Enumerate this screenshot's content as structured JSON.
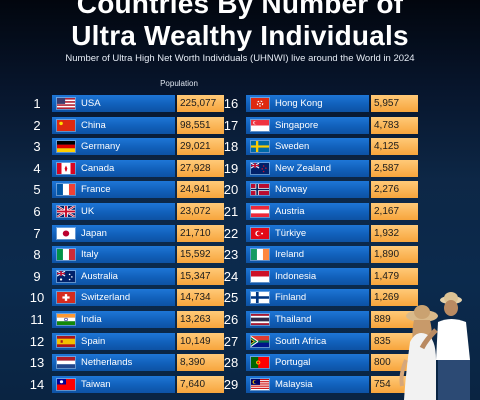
{
  "header": {
    "title_line1": "Countries By Number of",
    "title_line2": "Ultra Wealthy Individuals",
    "subtitle": "Number of Ultra High Net Worth Individuals (UHNWI) live around the World in 2024",
    "column_header": "Population"
  },
  "chart_data": {
    "type": "table",
    "title": "Countries By Number of Ultra Wealthy Individuals",
    "subtitle": "Number of Ultra High Net Worth Individuals (UHNWI) live around the World in 2024",
    "value_label": "Population",
    "rows": [
      {
        "rank": "1",
        "country": "USA",
        "value": "225,077",
        "flag": "flag-us"
      },
      {
        "rank": "2",
        "country": "China",
        "value": "98,551",
        "flag": "flag-cn"
      },
      {
        "rank": "3",
        "country": "Germany",
        "value": "29,021",
        "flag": "flag-de"
      },
      {
        "rank": "4",
        "country": "Canada",
        "value": "27,928",
        "flag": "flag-ca"
      },
      {
        "rank": "5",
        "country": "France",
        "value": "24,941",
        "flag": "flag-fr"
      },
      {
        "rank": "6",
        "country": "UK",
        "value": "23,072",
        "flag": "flag-uk"
      },
      {
        "rank": "7",
        "country": "Japan",
        "value": "21,710",
        "flag": "flag-jp"
      },
      {
        "rank": "8",
        "country": "Italy",
        "value": "15,592",
        "flag": "flag-it"
      },
      {
        "rank": "9",
        "country": "Australia",
        "value": "15,347",
        "flag": "flag-au"
      },
      {
        "rank": "10",
        "country": "Switzerland",
        "value": "14,734",
        "flag": "flag-ch"
      },
      {
        "rank": "11",
        "country": "India",
        "value": "13,263",
        "flag": "flag-in"
      },
      {
        "rank": "12",
        "country": "Spain",
        "value": "10,149",
        "flag": "flag-es"
      },
      {
        "rank": "13",
        "country": "Netherlands",
        "value": "8,390",
        "flag": "flag-nl"
      },
      {
        "rank": "14",
        "country": "Taiwan",
        "value": "7,640",
        "flag": "flag-tw"
      },
      {
        "rank": "16",
        "country": "Hong Kong",
        "value": "5,957",
        "flag": "flag-hk"
      },
      {
        "rank": "17",
        "country": "Singapore",
        "value": "4,783",
        "flag": "flag-sg"
      },
      {
        "rank": "18",
        "country": "Sweden",
        "value": "4,125",
        "flag": "flag-se"
      },
      {
        "rank": "19",
        "country": "New Zealand",
        "value": "2,587",
        "flag": "flag-nz"
      },
      {
        "rank": "20",
        "country": "Norway",
        "value": "2,276",
        "flag": "flag-no"
      },
      {
        "rank": "21",
        "country": "Austria",
        "value": "2,167",
        "flag": "flag-at"
      },
      {
        "rank": "22",
        "country": "Türkiye",
        "value": "1,932",
        "flag": "flag-tr"
      },
      {
        "rank": "23",
        "country": "Ireland",
        "value": "1,890",
        "flag": "flag-ie"
      },
      {
        "rank": "24",
        "country": "Indonesia",
        "value": "1,479",
        "flag": "flag-id"
      },
      {
        "rank": "25",
        "country": "Finland",
        "value": "1,269",
        "flag": "flag-fi"
      },
      {
        "rank": "26",
        "country": "Thailand",
        "value": "889",
        "flag": "flag-th"
      },
      {
        "rank": "27",
        "country": "South Africa",
        "value": "835",
        "flag": "flag-za"
      },
      {
        "rank": "28",
        "country": "Portugal",
        "value": "800",
        "flag": "flag-pt"
      },
      {
        "rank": "29",
        "country": "Malaysia",
        "value": "754",
        "flag": "flag-my"
      }
    ]
  },
  "colors": {
    "country_bar": "#1160ba",
    "value_bar": "#f7a53c",
    "background": "#0b2a4d"
  }
}
